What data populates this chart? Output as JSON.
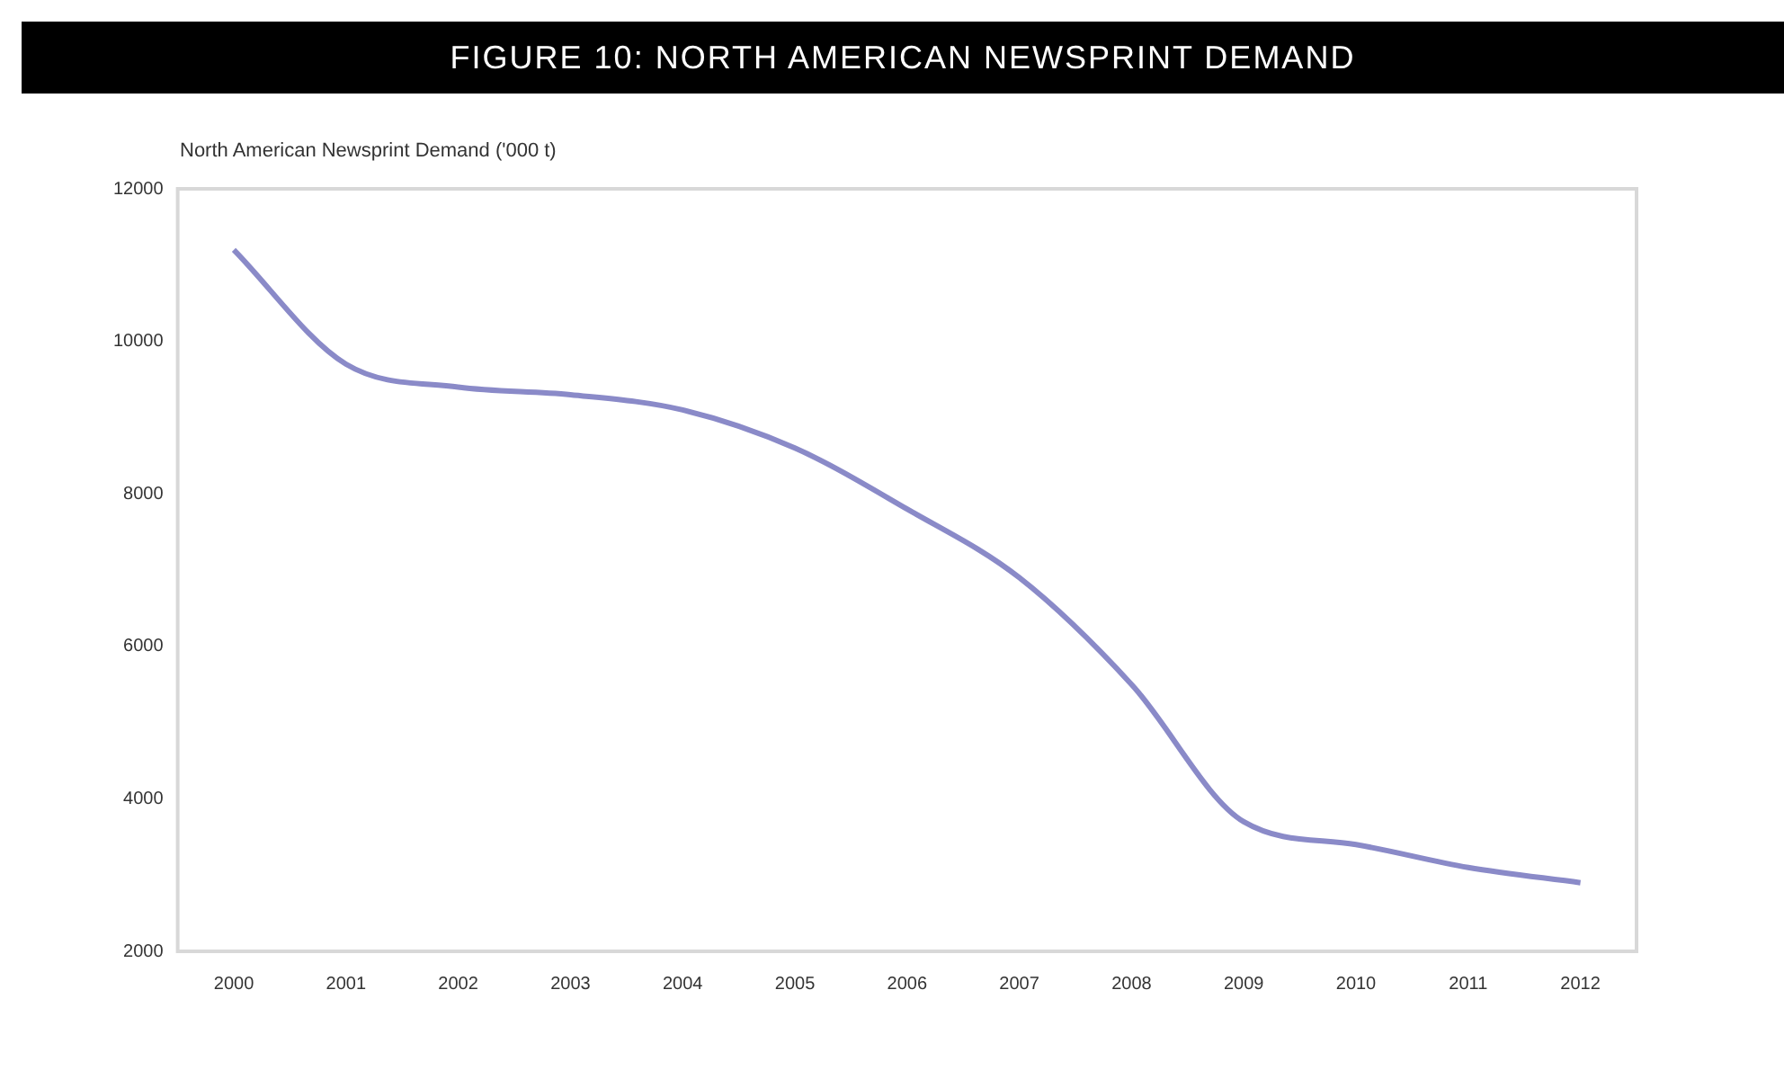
{
  "chart_data": {
    "type": "line",
    "title": "FIGURE 10: NORTH AMERICAN NEWSPRINT DEMAND",
    "ylabel": "North American Newsprint Demand ('000 t)",
    "categories": [
      "2000",
      "2001",
      "2002",
      "2003",
      "2004",
      "2005",
      "2006",
      "2007",
      "2008",
      "2009",
      "2010",
      "2011",
      "2012"
    ],
    "series": [
      {
        "color": "#8a8ac8",
        "values": [
          11200,
          9700,
          9400,
          9300,
          9100,
          8600,
          7800,
          6900,
          5500,
          3700,
          3400,
          3100,
          2900
        ]
      }
    ],
    "ylim": [
      2000,
      12000
    ],
    "yticks": [
      2000,
      4000,
      6000,
      8000,
      10000,
      12000
    ],
    "grid": false,
    "legend": false,
    "marker": "none",
    "line_style": "solid"
  }
}
